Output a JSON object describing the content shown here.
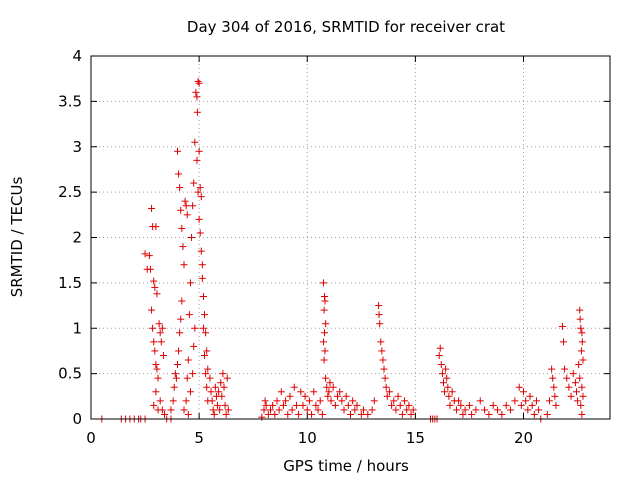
{
  "chart_data": {
    "type": "scatter",
    "title": "Day 304 of 2016, SRMTID for receiver crat",
    "xlabel": "GPS time / hours",
    "ylabel": "SRMTID / TECUs",
    "xlim": [
      0,
      24
    ],
    "ylim": [
      0,
      4
    ],
    "xticks": [
      0,
      5,
      10,
      15,
      20
    ],
    "xtick_labels": [
      "0",
      "5",
      "10",
      "15",
      "20"
    ],
    "yticks": [
      0,
      0.5,
      1,
      1.5,
      2,
      2.5,
      3,
      3.5,
      4
    ],
    "ytick_labels": [
      "0",
      "0.5",
      "1",
      "1.5",
      "2",
      "2.5",
      "3",
      "3.5",
      "4"
    ],
    "grid": true,
    "marker": "plus",
    "color": "#dd0000",
    "series": [
      {
        "name": "SRMTID",
        "points": [
          [
            0.5,
            0.0
          ],
          [
            1.4,
            0.0
          ],
          [
            1.6,
            0.0
          ],
          [
            1.8,
            0.0
          ],
          [
            2.0,
            0.0
          ],
          [
            2.2,
            0.0
          ],
          [
            2.3,
            0.0
          ],
          [
            2.5,
            0.0
          ],
          [
            3.5,
            0.0
          ],
          [
            3.7,
            0.0
          ],
          [
            2.5,
            1.82
          ],
          [
            2.6,
            1.65
          ],
          [
            2.7,
            1.8
          ],
          [
            2.75,
            1.65
          ],
          [
            2.8,
            2.32
          ],
          [
            2.85,
            2.12
          ],
          [
            2.9,
            1.52
          ],
          [
            2.95,
            1.45
          ],
          [
            3.0,
            2.12
          ],
          [
            3.05,
            1.38
          ],
          [
            2.8,
            1.2
          ],
          [
            2.85,
            1.0
          ],
          [
            2.9,
            0.85
          ],
          [
            2.95,
            0.75
          ],
          [
            3.0,
            0.6
          ],
          [
            3.05,
            0.55
          ],
          [
            3.1,
            0.45
          ],
          [
            3.0,
            0.3
          ],
          [
            2.9,
            0.15
          ],
          [
            3.1,
            0.1
          ],
          [
            3.15,
            1.05
          ],
          [
            3.2,
            0.95
          ],
          [
            3.25,
            0.85
          ],
          [
            3.3,
            1.0
          ],
          [
            3.35,
            0.7
          ],
          [
            3.2,
            0.2
          ],
          [
            3.3,
            0.1
          ],
          [
            3.4,
            0.05
          ],
          [
            3.7,
            0.1
          ],
          [
            3.8,
            0.2
          ],
          [
            3.85,
            0.35
          ],
          [
            3.9,
            0.5
          ],
          [
            3.95,
            0.45
          ],
          [
            4.0,
            0.6
          ],
          [
            4.05,
            0.75
          ],
          [
            4.1,
            0.95
          ],
          [
            4.15,
            1.1
          ],
          [
            4.2,
            1.3
          ],
          [
            4.0,
            2.95
          ],
          [
            4.05,
            2.7
          ],
          [
            4.1,
            2.55
          ],
          [
            4.15,
            2.3
          ],
          [
            4.2,
            2.1
          ],
          [
            4.25,
            1.9
          ],
          [
            4.3,
            1.7
          ],
          [
            4.35,
            2.4
          ],
          [
            4.4,
            2.35
          ],
          [
            4.45,
            2.25
          ],
          [
            4.3,
            0.1
          ],
          [
            4.4,
            0.2
          ],
          [
            4.45,
            0.45
          ],
          [
            4.5,
            0.65
          ],
          [
            4.55,
            1.15
          ],
          [
            4.6,
            1.5
          ],
          [
            4.65,
            2.0
          ],
          [
            4.7,
            2.35
          ],
          [
            4.75,
            2.6
          ],
          [
            4.8,
            3.05
          ],
          [
            4.5,
            0.05
          ],
          [
            4.6,
            0.3
          ],
          [
            4.7,
            0.5
          ],
          [
            4.75,
            0.8
          ],
          [
            4.8,
            1.0
          ],
          [
            4.85,
            3.6
          ],
          [
            4.9,
            3.55
          ],
          [
            4.95,
            3.72
          ],
          [
            5.0,
            3.7
          ],
          [
            4.92,
            3.38
          ],
          [
            4.9,
            2.85
          ],
          [
            4.95,
            2.5
          ],
          [
            5.0,
            2.2
          ],
          [
            5.05,
            2.05
          ],
          [
            5.1,
            1.85
          ],
          [
            5.15,
            1.55
          ],
          [
            5.2,
            1.35
          ],
          [
            5.25,
            1.15
          ],
          [
            5.3,
            0.95
          ],
          [
            5.35,
            0.75
          ],
          [
            5.0,
            2.95
          ],
          [
            5.05,
            2.55
          ],
          [
            5.1,
            2.45
          ],
          [
            5.15,
            1.7
          ],
          [
            5.2,
            1.0
          ],
          [
            5.25,
            0.7
          ],
          [
            5.3,
            0.5
          ],
          [
            5.35,
            0.35
          ],
          [
            5.4,
            0.2
          ],
          [
            5.4,
            0.55
          ],
          [
            5.5,
            0.45
          ],
          [
            5.55,
            0.3
          ],
          [
            5.6,
            0.2
          ],
          [
            5.65,
            0.1
          ],
          [
            5.7,
            0.05
          ],
          [
            5.75,
            0.35
          ],
          [
            5.8,
            0.25
          ],
          [
            5.85,
            0.15
          ],
          [
            5.9,
            0.3
          ],
          [
            5.95,
            0.1
          ],
          [
            6.0,
            0.4
          ],
          [
            6.05,
            0.25
          ],
          [
            6.1,
            0.5
          ],
          [
            6.15,
            0.35
          ],
          [
            6.2,
            0.15
          ],
          [
            6.25,
            0.05
          ],
          [
            6.3,
            0.45
          ],
          [
            6.35,
            0.1
          ],
          [
            7.9,
            0.02
          ],
          [
            8.0,
            0.1
          ],
          [
            8.05,
            0.2
          ],
          [
            8.1,
            0.15
          ],
          [
            8.2,
            0.05
          ],
          [
            8.3,
            0.1
          ],
          [
            8.4,
            0.15
          ],
          [
            8.5,
            0.05
          ],
          [
            8.6,
            0.2
          ],
          [
            8.7,
            0.1
          ],
          [
            8.8,
            0.3
          ],
          [
            8.9,
            0.15
          ],
          [
            9.0,
            0.2
          ],
          [
            9.1,
            0.05
          ],
          [
            9.2,
            0.25
          ],
          [
            9.3,
            0.1
          ],
          [
            9.4,
            0.35
          ],
          [
            9.5,
            0.15
          ],
          [
            9.6,
            0.05
          ],
          [
            9.7,
            0.3
          ],
          [
            9.8,
            0.15
          ],
          [
            9.9,
            0.25
          ],
          [
            10.0,
            0.1
          ],
          [
            10.1,
            0.2
          ],
          [
            10.2,
            0.05
          ],
          [
            10.3,
            0.3
          ],
          [
            10.4,
            0.15
          ],
          [
            10.5,
            0.1
          ],
          [
            10.6,
            0.2
          ],
          [
            10.7,
            0.05
          ],
          [
            10.75,
            1.5
          ],
          [
            10.8,
            1.35
          ],
          [
            10.82,
            1.3
          ],
          [
            10.78,
            1.2
          ],
          [
            10.85,
            1.05
          ],
          [
            10.8,
            0.95
          ],
          [
            10.75,
            0.85
          ],
          [
            10.82,
            0.75
          ],
          [
            10.78,
            0.65
          ],
          [
            10.85,
            0.45
          ],
          [
            10.9,
            0.35
          ],
          [
            10.95,
            0.25
          ],
          [
            11.0,
            0.3
          ],
          [
            11.05,
            0.4
          ],
          [
            11.1,
            0.2
          ],
          [
            11.2,
            0.35
          ],
          [
            11.3,
            0.15
          ],
          [
            11.4,
            0.25
          ],
          [
            11.5,
            0.3
          ],
          [
            11.6,
            0.2
          ],
          [
            11.7,
            0.1
          ],
          [
            11.8,
            0.25
          ],
          [
            11.9,
            0.15
          ],
          [
            12.0,
            0.05
          ],
          [
            12.1,
            0.2
          ],
          [
            12.2,
            0.1
          ],
          [
            12.3,
            0.15
          ],
          [
            12.5,
            0.05
          ],
          [
            12.6,
            0.1
          ],
          [
            12.8,
            0.05
          ],
          [
            13.0,
            0.1
          ],
          [
            13.1,
            0.2
          ],
          [
            13.3,
            1.25
          ],
          [
            13.32,
            1.15
          ],
          [
            13.35,
            1.05
          ],
          [
            13.4,
            0.85
          ],
          [
            13.45,
            0.75
          ],
          [
            13.5,
            0.65
          ],
          [
            13.55,
            0.55
          ],
          [
            13.6,
            0.45
          ],
          [
            13.65,
            0.35
          ],
          [
            13.7,
            0.25
          ],
          [
            13.8,
            0.3
          ],
          [
            13.9,
            0.15
          ],
          [
            14.0,
            0.2
          ],
          [
            14.1,
            0.1
          ],
          [
            14.2,
            0.25
          ],
          [
            14.3,
            0.15
          ],
          [
            14.4,
            0.05
          ],
          [
            14.5,
            0.2
          ],
          [
            14.6,
            0.1
          ],
          [
            14.7,
            0.15
          ],
          [
            14.8,
            0.05
          ],
          [
            14.9,
            0.1
          ],
          [
            15.7,
            0.0
          ],
          [
            15.8,
            0.0
          ],
          [
            15.9,
            0.0
          ],
          [
            16.0,
            0.0
          ],
          [
            16.1,
            0.7
          ],
          [
            16.15,
            0.78
          ],
          [
            16.2,
            0.6
          ],
          [
            16.25,
            0.5
          ],
          [
            16.3,
            0.4
          ],
          [
            16.35,
            0.3
          ],
          [
            16.4,
            0.55
          ],
          [
            16.45,
            0.45
          ],
          [
            16.5,
            0.35
          ],
          [
            16.55,
            0.25
          ],
          [
            16.6,
            0.15
          ],
          [
            16.7,
            0.3
          ],
          [
            16.8,
            0.2
          ],
          [
            16.9,
            0.1
          ],
          [
            17.0,
            0.2
          ],
          [
            17.1,
            0.15
          ],
          [
            17.2,
            0.05
          ],
          [
            17.3,
            0.1
          ],
          [
            17.5,
            0.15
          ],
          [
            17.6,
            0.05
          ],
          [
            17.8,
            0.1
          ],
          [
            18.0,
            0.2
          ],
          [
            18.2,
            0.1
          ],
          [
            18.4,
            0.05
          ],
          [
            18.6,
            0.15
          ],
          [
            18.8,
            0.1
          ],
          [
            19.0,
            0.05
          ],
          [
            19.2,
            0.15
          ],
          [
            19.4,
            0.1
          ],
          [
            19.6,
            0.2
          ],
          [
            19.8,
            0.35
          ],
          [
            19.9,
            0.15
          ],
          [
            20.0,
            0.3
          ],
          [
            20.1,
            0.2
          ],
          [
            20.2,
            0.1
          ],
          [
            20.3,
            0.25
          ],
          [
            20.4,
            0.15
          ],
          [
            20.5,
            0.05
          ],
          [
            20.6,
            0.2
          ],
          [
            20.7,
            0.1
          ],
          [
            20.8,
            0.0
          ],
          [
            21.1,
            0.05
          ],
          [
            21.2,
            0.2
          ],
          [
            21.3,
            0.55
          ],
          [
            21.35,
            0.45
          ],
          [
            21.4,
            0.35
          ],
          [
            21.45,
            0.25
          ],
          [
            21.5,
            0.15
          ],
          [
            21.8,
            1.02
          ],
          [
            21.85,
            0.85
          ],
          [
            21.9,
            0.55
          ],
          [
            22.0,
            0.45
          ],
          [
            22.1,
            0.35
          ],
          [
            22.2,
            0.25
          ],
          [
            22.3,
            0.5
          ],
          [
            22.4,
            0.4
          ],
          [
            22.45,
            0.3
          ],
          [
            22.5,
            0.2
          ],
          [
            22.55,
            0.6
          ],
          [
            22.6,
            1.2
          ],
          [
            22.62,
            1.1
          ],
          [
            22.65,
            1.0
          ],
          [
            22.7,
            0.95
          ],
          [
            22.72,
            0.85
          ],
          [
            22.68,
            0.75
          ],
          [
            22.75,
            0.65
          ],
          [
            22.6,
            0.45
          ],
          [
            22.7,
            0.35
          ],
          [
            22.75,
            0.25
          ],
          [
            22.65,
            0.15
          ],
          [
            22.7,
            0.05
          ]
        ]
      }
    ]
  }
}
